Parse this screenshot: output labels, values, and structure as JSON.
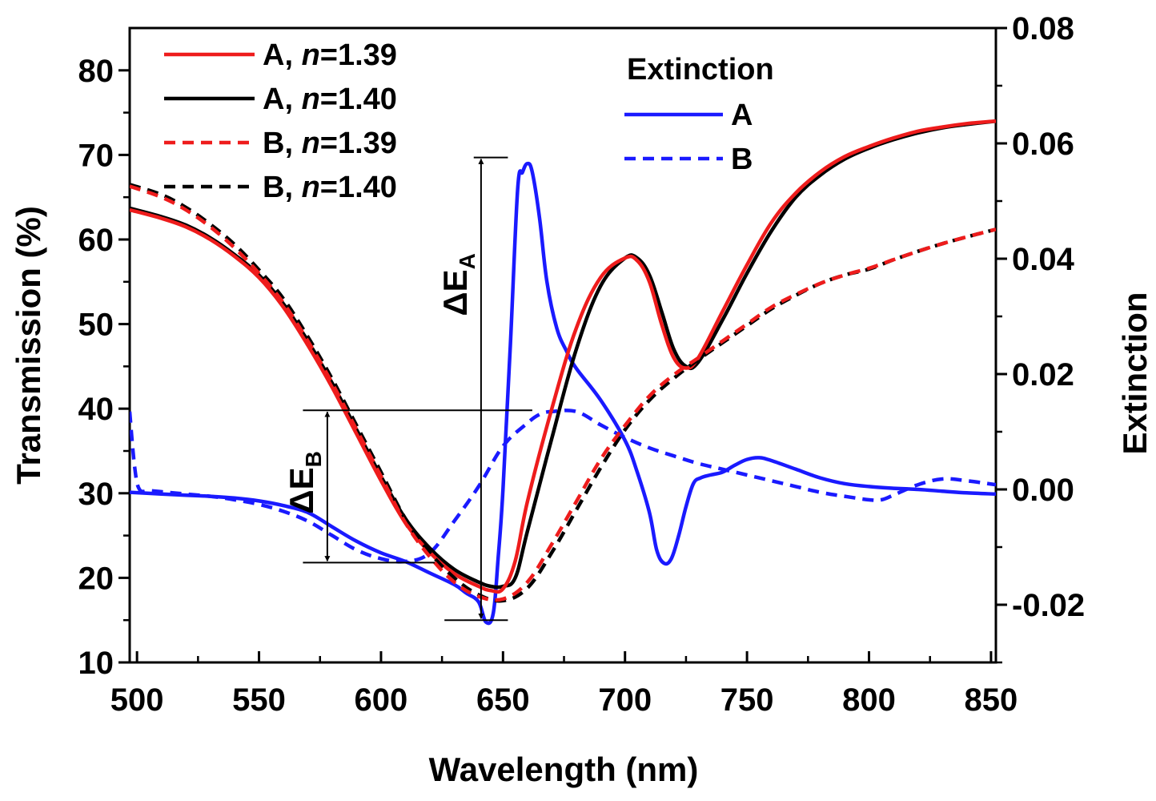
{
  "chart_data": {
    "type": "line",
    "xlabel": "Wavelength (nm)",
    "ylabel": "Transmission (%)",
    "y2label": "Extinction",
    "xlim": [
      497,
      852
    ],
    "ylim": [
      10,
      85
    ],
    "y2lim": [
      -0.03,
      0.08
    ],
    "x_ticks": [
      500,
      550,
      600,
      650,
      700,
      750,
      800,
      850
    ],
    "y_ticks": [
      10,
      20,
      30,
      40,
      50,
      60,
      70,
      80
    ],
    "y2_ticks": [
      "-0.02",
      "0.00",
      "0.02",
      "0.04",
      "0.06",
      "0.08"
    ],
    "y2_tick_values": [
      -0.02,
      0.0,
      0.02,
      0.04,
      0.06,
      0.08
    ],
    "legend_left": [
      {
        "prefix": "A, ",
        "var": "n",
        "value": "=1.39",
        "color": "#ee1c1c",
        "dash": false
      },
      {
        "prefix": "A, ",
        "var": "n",
        "value": "=1.40",
        "color": "#000000",
        "dash": false
      },
      {
        "prefix": "B, ",
        "var": "n",
        "value": "=1.39",
        "color": "#ee1c1c",
        "dash": true
      },
      {
        "prefix": "B, ",
        "var": "n",
        "value": "=1.40",
        "color": "#000000",
        "dash": true
      }
    ],
    "legend_right_title": "Extinction",
    "legend_right": [
      {
        "label": "A",
        "color": "#1a1aff",
        "dash": false
      },
      {
        "label": "B",
        "color": "#1a1aff",
        "dash": true
      }
    ],
    "annotations": {
      "delta_a": {
        "main": "ΔE",
        "sub": "A",
        "top": 69.7,
        "bottom": 15.0,
        "x": 641
      },
      "delta_b": {
        "main": "ΔE",
        "sub": "B",
        "top": 39.8,
        "bottom": 21.8,
        "x": 578
      }
    },
    "series": [
      {
        "name": "A, n=1.39",
        "axis": "left",
        "color": "#ee1c1c",
        "dash": false,
        "x": [
          497,
          510,
          520,
          530,
          540,
          550,
          560,
          570,
          580,
          590,
          600,
          610,
          620,
          630,
          640,
          645,
          650,
          655,
          660,
          670,
          680,
          690,
          700,
          705,
          710,
          715,
          720,
          725,
          730,
          740,
          750,
          760,
          770,
          780,
          790,
          800,
          810,
          820,
          830,
          840,
          852
        ],
        "y": [
          63.5,
          62.5,
          61.5,
          60.0,
          58.0,
          55.5,
          52.0,
          47.5,
          42.5,
          37.0,
          31.5,
          26.5,
          23.0,
          20.5,
          19.0,
          18.5,
          18.7,
          22.0,
          29.0,
          40.0,
          49.5,
          55.5,
          57.8,
          57.5,
          55.0,
          50.0,
          46.0,
          44.8,
          46.0,
          51.5,
          57.0,
          62.0,
          65.5,
          68.0,
          69.8,
          71.0,
          72.0,
          72.8,
          73.3,
          73.7,
          74.0
        ]
      },
      {
        "name": "A, n=1.40",
        "axis": "left",
        "color": "#000000",
        "dash": false,
        "x": [
          497,
          510,
          520,
          530,
          540,
          550,
          560,
          570,
          580,
          590,
          600,
          610,
          620,
          630,
          640,
          645,
          650,
          655,
          660,
          670,
          680,
          690,
          700,
          705,
          710,
          715,
          720,
          725,
          730,
          740,
          750,
          760,
          770,
          780,
          790,
          800,
          810,
          820,
          830,
          840,
          852
        ],
        "y": [
          63.7,
          62.7,
          61.7,
          60.2,
          58.2,
          55.8,
          52.4,
          48.0,
          43.0,
          37.5,
          32.0,
          27.0,
          23.5,
          21.0,
          19.5,
          19.0,
          19.0,
          20.0,
          25.5,
          36.5,
          47.0,
          54.5,
          57.8,
          57.8,
          55.8,
          51.5,
          47.0,
          45.0,
          45.5,
          50.5,
          56.0,
          61.0,
          65.0,
          67.6,
          69.5,
          70.8,
          71.8,
          72.6,
          73.2,
          73.6,
          74.0
        ]
      },
      {
        "name": "B, n=1.39",
        "axis": "left",
        "color": "#ee1c1c",
        "dash": true,
        "x": [
          497,
          510,
          520,
          530,
          540,
          550,
          560,
          570,
          580,
          590,
          600,
          610,
          620,
          630,
          640,
          650,
          660,
          670,
          680,
          690,
          700,
          710,
          720,
          730,
          740,
          750,
          760,
          770,
          780,
          790,
          800,
          810,
          820,
          830,
          840,
          852
        ],
        "y": [
          66.3,
          65.0,
          63.5,
          61.5,
          59.0,
          56.0,
          52.5,
          48.0,
          43.0,
          37.5,
          32.0,
          26.5,
          22.5,
          19.5,
          17.8,
          17.5,
          19.5,
          24.0,
          29.0,
          34.0,
          38.0,
          41.5,
          44.0,
          46.0,
          48.0,
          50.0,
          52.0,
          53.5,
          54.8,
          55.8,
          56.6,
          57.6,
          58.6,
          59.5,
          60.3,
          61.2
        ]
      },
      {
        "name": "B, n=1.40",
        "axis": "left",
        "color": "#000000",
        "dash": true,
        "x": [
          497,
          510,
          520,
          530,
          540,
          550,
          560,
          570,
          580,
          590,
          600,
          610,
          620,
          630,
          640,
          650,
          660,
          670,
          680,
          690,
          700,
          710,
          720,
          730,
          740,
          750,
          760,
          770,
          780,
          790,
          800,
          810,
          820,
          830,
          840,
          852
        ],
        "y": [
          66.5,
          65.3,
          63.8,
          61.8,
          59.4,
          56.4,
          53.0,
          48.5,
          43.5,
          38.0,
          32.5,
          27.0,
          23.0,
          20.0,
          18.0,
          17.3,
          18.8,
          23.0,
          28.0,
          33.0,
          37.5,
          41.0,
          43.6,
          45.8,
          47.8,
          49.8,
          51.8,
          53.4,
          54.8,
          55.8,
          56.5,
          57.6,
          58.6,
          59.5,
          60.3,
          61.2
        ]
      },
      {
        "name": "Extinction A",
        "axis": "right",
        "color": "#1a1aff",
        "dash": false,
        "x": [
          497,
          510,
          520,
          530,
          540,
          550,
          560,
          570,
          580,
          590,
          600,
          610,
          620,
          630,
          635,
          640,
          643,
          646,
          648,
          650,
          653,
          656,
          658,
          660,
          662,
          665,
          668,
          672,
          676,
          680,
          690,
          700,
          705,
          710,
          713,
          716,
          719,
          722,
          725,
          728,
          731,
          735,
          740,
          745,
          750,
          755,
          760,
          770,
          780,
          790,
          800,
          810,
          820,
          830,
          840,
          852
        ],
        "y": [
          -0.0005,
          -0.0008,
          -0.001,
          -0.0012,
          -0.0015,
          -0.002,
          -0.0028,
          -0.004,
          -0.0065,
          -0.009,
          -0.011,
          -0.0125,
          -0.0145,
          -0.0165,
          -0.018,
          -0.0195,
          -0.023,
          -0.0215,
          -0.012,
          0.0,
          0.025,
          0.052,
          0.055,
          0.0565,
          0.055,
          0.047,
          0.036,
          0.028,
          0.024,
          0.021,
          0.0155,
          0.0085,
          0.003,
          -0.004,
          -0.0105,
          -0.0128,
          -0.012,
          -0.008,
          -0.003,
          0.001,
          0.002,
          0.0025,
          0.003,
          0.0042,
          0.0052,
          0.0055,
          0.005,
          0.0035,
          0.002,
          0.001,
          0.0005,
          0.0002,
          0.0,
          -0.0003,
          -0.0006,
          -0.0008
        ]
      },
      {
        "name": "Extinction B",
        "axis": "right",
        "color": "#1a1aff",
        "dash": true,
        "x": [
          497,
          499,
          501,
          505,
          510,
          520,
          530,
          540,
          550,
          560,
          570,
          580,
          590,
          600,
          610,
          620,
          630,
          640,
          650,
          660,
          665,
          670,
          680,
          690,
          700,
          710,
          720,
          730,
          740,
          750,
          760,
          770,
          780,
          790,
          800,
          805,
          810,
          820,
          830,
          840,
          852
        ],
        "y": [
          0.0135,
          0.004,
          0.0,
          -0.0002,
          -0.0004,
          -0.0008,
          -0.0012,
          -0.0018,
          -0.0026,
          -0.0038,
          -0.0055,
          -0.008,
          -0.0105,
          -0.012,
          -0.0125,
          -0.011,
          -0.0055,
          0.0005,
          0.0075,
          0.0115,
          0.013,
          0.0135,
          0.0135,
          0.0112,
          0.009,
          0.0072,
          0.0058,
          0.0045,
          0.0035,
          0.0025,
          0.0015,
          0.0005,
          -0.0005,
          -0.0012,
          -0.0018,
          -0.0018,
          -0.001,
          0.0008,
          0.0018,
          0.0015,
          0.0008
        ]
      }
    ]
  }
}
